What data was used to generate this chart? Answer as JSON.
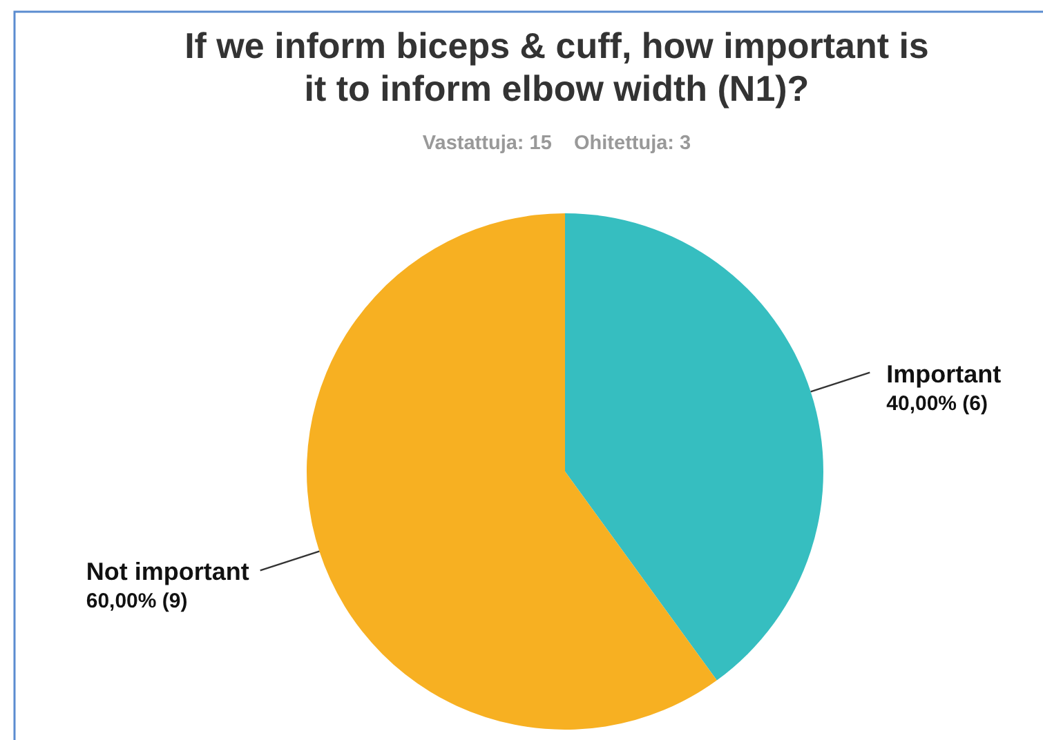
{
  "chart_data": {
    "type": "pie",
    "title": "If we inform biceps & cuff, how important is it to inform elbow width (N1)?",
    "subtitle": "Vastattuja: 15    Ohitettuja: 3",
    "categories": [
      "Important",
      "Not important"
    ],
    "values": [
      6,
      9
    ],
    "value_labels": [
      "40,00% (6)",
      "60,00% (9)"
    ],
    "colors": [
      "#36bec0",
      "#f7b022"
    ]
  }
}
